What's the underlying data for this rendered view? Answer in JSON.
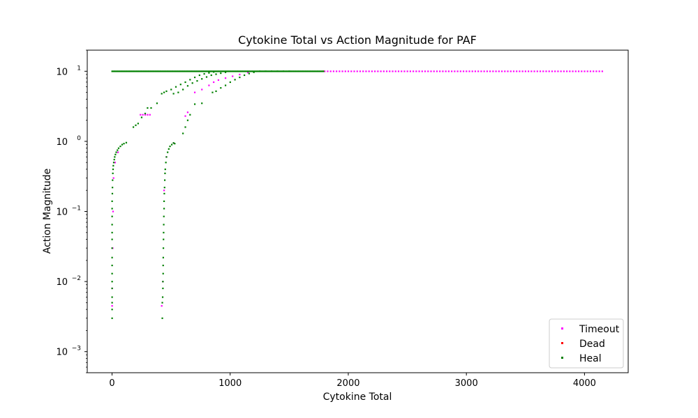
{
  "chart_data": {
    "type": "scatter",
    "title": "Cytokine Total vs Action Magnitude for PAF",
    "xlabel": "Cytokine Total",
    "ylabel": "Action Magnitude",
    "xlim": [
      -210,
      4370
    ],
    "ylim": [
      0.0005,
      20
    ],
    "yscale": "log",
    "x_ticks": [
      0,
      1000,
      2000,
      3000,
      4000
    ],
    "x_tick_labels": [
      "0",
      "1000",
      "2000",
      "3000",
      "4000"
    ],
    "y_ticks": [
      0.001,
      0.01,
      0.1,
      1,
      10
    ],
    "y_tick_labels": [
      {
        "base": "10",
        "exp": "−3"
      },
      {
        "base": "10",
        "exp": "−2"
      },
      {
        "base": "10",
        "exp": "−1"
      },
      {
        "base": "10",
        "exp": "0"
      },
      {
        "base": "10",
        "exp": "1"
      }
    ],
    "grid": false,
    "legend_position": "lower-right",
    "series": [
      {
        "name": "Timeout",
        "color": "#ff00ff",
        "points": [
          [
            0,
            0.0045
          ],
          [
            0,
            0.008
          ],
          [
            5,
            0.03
          ],
          [
            8,
            0.1
          ],
          [
            12,
            0.3
          ],
          [
            25,
            0.5
          ],
          [
            50,
            0.7
          ],
          [
            240,
            2.4
          ],
          [
            260,
            2.4
          ],
          [
            280,
            2.4
          ],
          [
            300,
            2.4
          ],
          [
            320,
            2.4
          ],
          [
            420,
            0.0045
          ],
          [
            430,
            0.01
          ],
          [
            440,
            0.2
          ],
          [
            460,
            0.6
          ],
          [
            520,
            0.95
          ],
          [
            620,
            2.3
          ],
          [
            640,
            2.6
          ],
          [
            700,
            5.0
          ],
          [
            760,
            5.5
          ],
          [
            820,
            6.3
          ],
          [
            860,
            7.0
          ],
          [
            900,
            7.5
          ],
          [
            960,
            8.0
          ],
          [
            1020,
            8.5
          ],
          [
            1080,
            9.0
          ],
          [
            1150,
            9.6
          ]
        ],
        "band": {
          "y": 10,
          "x_start": 1800,
          "x_end": 4150,
          "step": 25
        }
      },
      {
        "name": "Dead",
        "color": "#ff0000",
        "points": [
          [
            1790,
            10
          ]
        ]
      },
      {
        "name": "Heal",
        "color": "#008000",
        "points": [
          [
            0,
            0.003
          ],
          [
            0,
            0.004
          ],
          [
            0,
            0.005
          ],
          [
            0,
            0.006
          ],
          [
            0,
            0.008
          ],
          [
            0,
            0.01
          ],
          [
            0,
            0.013
          ],
          [
            0,
            0.017
          ],
          [
            0,
            0.022
          ],
          [
            0,
            0.03
          ],
          [
            0,
            0.04
          ],
          [
            0,
            0.05
          ],
          [
            0,
            0.065
          ],
          [
            0,
            0.085
          ],
          [
            0,
            0.11
          ],
          [
            0,
            0.14
          ],
          [
            2,
            0.18
          ],
          [
            3,
            0.22
          ],
          [
            4,
            0.28
          ],
          [
            6,
            0.35
          ],
          [
            8,
            0.4
          ],
          [
            10,
            0.45
          ],
          [
            14,
            0.5
          ],
          [
            18,
            0.55
          ],
          [
            22,
            0.6
          ],
          [
            28,
            0.65
          ],
          [
            35,
            0.7
          ],
          [
            45,
            0.75
          ],
          [
            55,
            0.8
          ],
          [
            70,
            0.85
          ],
          [
            85,
            0.9
          ],
          [
            100,
            0.93
          ],
          [
            120,
            0.96
          ],
          [
            180,
            1.6
          ],
          [
            200,
            1.7
          ],
          [
            220,
            1.8
          ],
          [
            250,
            2.2
          ],
          [
            280,
            2.5
          ],
          [
            300,
            3.0
          ],
          [
            330,
            3.0
          ],
          [
            380,
            3.5
          ],
          [
            420,
            4.8
          ],
          [
            440,
            5.0
          ],
          [
            460,
            5.2
          ],
          [
            500,
            5.5
          ],
          [
            540,
            6.0
          ],
          [
            580,
            6.5
          ],
          [
            620,
            7.0
          ],
          [
            660,
            7.6
          ],
          [
            700,
            8.2
          ],
          [
            740,
            8.8
          ],
          [
            780,
            9.2
          ],
          [
            820,
            9.5
          ],
          [
            860,
            9.8
          ],
          [
            520,
            4.8
          ],
          [
            560,
            5.0
          ],
          [
            600,
            5.5
          ],
          [
            640,
            6.2
          ],
          [
            680,
            6.8
          ],
          [
            720,
            7.3
          ],
          [
            760,
            7.8
          ],
          [
            800,
            8.3
          ],
          [
            840,
            8.8
          ],
          [
            880,
            9.1
          ],
          [
            920,
            9.4
          ],
          [
            960,
            9.7
          ],
          [
            700,
            3.4
          ],
          [
            760,
            3.5
          ],
          [
            850,
            5.0
          ],
          [
            880,
            5.2
          ],
          [
            920,
            5.8
          ],
          [
            960,
            6.3
          ],
          [
            1000,
            7.0
          ],
          [
            1040,
            7.6
          ],
          [
            1080,
            8.2
          ],
          [
            1120,
            8.8
          ],
          [
            1160,
            9.3
          ],
          [
            1200,
            9.7
          ],
          [
            600,
            1.3
          ],
          [
            620,
            1.6
          ],
          [
            640,
            2.0
          ],
          [
            660,
            2.4
          ],
          [
            425,
            0.003
          ],
          [
            425,
            0.005
          ],
          [
            428,
            0.006
          ],
          [
            430,
            0.008
          ],
          [
            430,
            0.01
          ],
          [
            432,
            0.013
          ],
          [
            432,
            0.017
          ],
          [
            433,
            0.022
          ],
          [
            434,
            0.03
          ],
          [
            435,
            0.04
          ],
          [
            436,
            0.05
          ],
          [
            437,
            0.065
          ],
          [
            438,
            0.085
          ],
          [
            440,
            0.11
          ],
          [
            440,
            0.14
          ],
          [
            442,
            0.18
          ],
          [
            444,
            0.22
          ],
          [
            446,
            0.28
          ],
          [
            448,
            0.35
          ],
          [
            450,
            0.4
          ],
          [
            455,
            0.5
          ],
          [
            460,
            0.6
          ],
          [
            470,
            0.7
          ],
          [
            480,
            0.78
          ],
          [
            490,
            0.85
          ],
          [
            505,
            0.9
          ],
          [
            520,
            0.95
          ],
          [
            530,
            0.93
          ],
          [
            1250,
            10
          ],
          [
            1300,
            10
          ],
          [
            1350,
            10
          ],
          [
            1400,
            10
          ],
          [
            1450,
            10
          ],
          [
            1500,
            10
          ]
        ],
        "band": {
          "y": 10,
          "x_start": 0,
          "x_end": 1790,
          "step": 10
        }
      }
    ]
  }
}
